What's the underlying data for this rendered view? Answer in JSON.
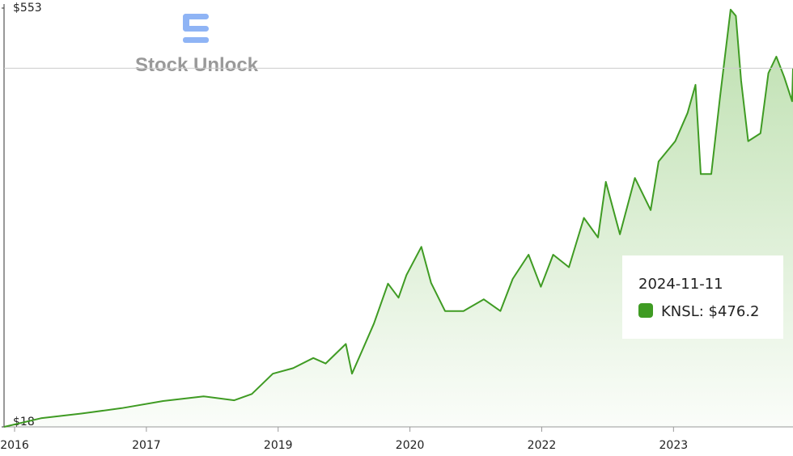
{
  "chart_data": {
    "type": "area",
    "watermark": "Stock Unlock",
    "x": [
      2015.88,
      2016.3,
      2016.76,
      2017.22,
      2017.69,
      2018.15,
      2018.5,
      2018.7,
      2018.94,
      2019.17,
      2019.4,
      2019.54,
      2019.77,
      2019.84,
      2019.95,
      2020.09,
      2020.25,
      2020.37,
      2020.46,
      2020.63,
      2020.74,
      2020.9,
      2021.11,
      2021.34,
      2021.53,
      2021.67,
      2021.85,
      2021.99,
      2022.13,
      2022.31,
      2022.48,
      2022.64,
      2022.73,
      2022.89,
      2023.06,
      2023.24,
      2023.33,
      2023.52,
      2023.66,
      2023.75,
      2023.81,
      2023.93,
      2024.03,
      2024.15,
      2024.21,
      2024.27,
      2024.35,
      2024.49,
      2024.58,
      2024.67,
      2024.76,
      2024.85,
      2024.86
    ],
    "series": [
      {
        "name": "KNSL",
        "color": "#3f9b23",
        "values": [
          18,
          29,
          35,
          42,
          51,
          57,
          52,
          60,
          86,
          93,
          106,
          99,
          124,
          86,
          114,
          150,
          201,
          183,
          212,
          248,
          202,
          166,
          166,
          181,
          166,
          207,
          238,
          197,
          238,
          222,
          285,
          260,
          331,
          264,
          336,
          295,
          357,
          383,
          419,
          455,
          341,
          341,
          440,
          551,
          543,
          460,
          383,
          393,
          470,
          491,
          465,
          434,
          476.2
        ]
      }
    ],
    "xlim": [
      2015.88,
      2024.86
    ],
    "xticks": [
      {
        "value": 2016,
        "label": "2016"
      },
      {
        "value": 2017.5,
        "label": "2017"
      },
      {
        "value": 2019,
        "label": "2019"
      },
      {
        "value": 2020.5,
        "label": "2020"
      },
      {
        "value": 2022,
        "label": "2022"
      },
      {
        "value": 2023.5,
        "label": "2023"
      }
    ],
    "ylim": [
      18,
      553
    ],
    "yticks": [
      {
        "value": 18,
        "label": "$18"
      },
      {
        "value": 553,
        "label": "$553"
      }
    ],
    "tooltip": {
      "date": "2024-11-11",
      "text": "KNSL: $476.2"
    }
  }
}
